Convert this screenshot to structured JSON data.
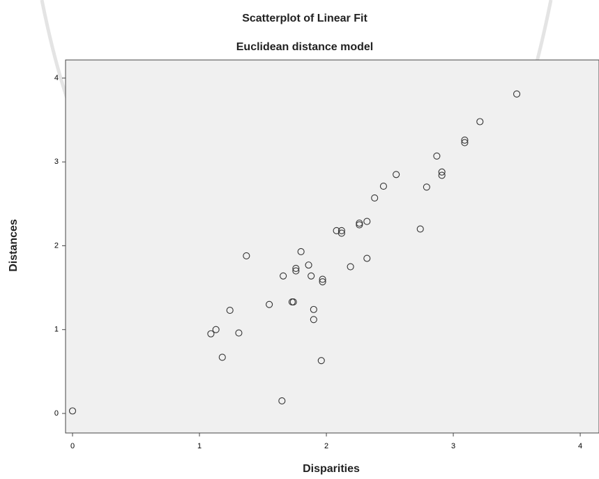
{
  "chart_data": {
    "type": "scatter",
    "title": "Scatterplot of Linear Fit",
    "subtitle": "Euclidean distance model",
    "x_label": "Disparities",
    "y_label": "Distances",
    "x": [
      0,
      3.5,
      3.21,
      3.09,
      3.09,
      2.87,
      2.91,
      2.91,
      2.55,
      2.45,
      2.79,
      2.38,
      2.32,
      2.26,
      2.26,
      2.08,
      2.12,
      2.12,
      2.74,
      1.37,
      1.8,
      2.19,
      2.32,
      1.86,
      1.76,
      1.76,
      1.66,
      1.88,
      1.97,
      1.97,
      1.24,
      1.55,
      1.73,
      1.74,
      1.9,
      1.9,
      1.13,
      1.09,
      1.31,
      1.18,
      1.96,
      1.65
    ],
    "series": [
      {
        "name": "Distances",
        "color": "#333333",
        "values": [
          0.03,
          3.81,
          3.48,
          3.26,
          3.23,
          3.07,
          2.88,
          2.84,
          2.85,
          2.71,
          2.7,
          2.57,
          2.29,
          2.27,
          2.25,
          2.18,
          2.18,
          2.15,
          2.2,
          1.88,
          1.93,
          1.75,
          1.85,
          1.77,
          1.73,
          1.7,
          1.64,
          1.64,
          1.6,
          1.57,
          1.23,
          1.3,
          1.33,
          1.33,
          1.24,
          1.12,
          1.0,
          0.95,
          0.96,
          0.67,
          0.63,
          0.15
        ]
      }
    ],
    "xlim": [
      -0.055,
      4.148
    ],
    "ylim": [
      -0.233,
      4.216
    ],
    "xticks": [
      0,
      1,
      2,
      3,
      4
    ],
    "yticks": [
      0,
      1,
      2,
      3,
      4
    ],
    "plot_background": "#f0f0f0"
  }
}
